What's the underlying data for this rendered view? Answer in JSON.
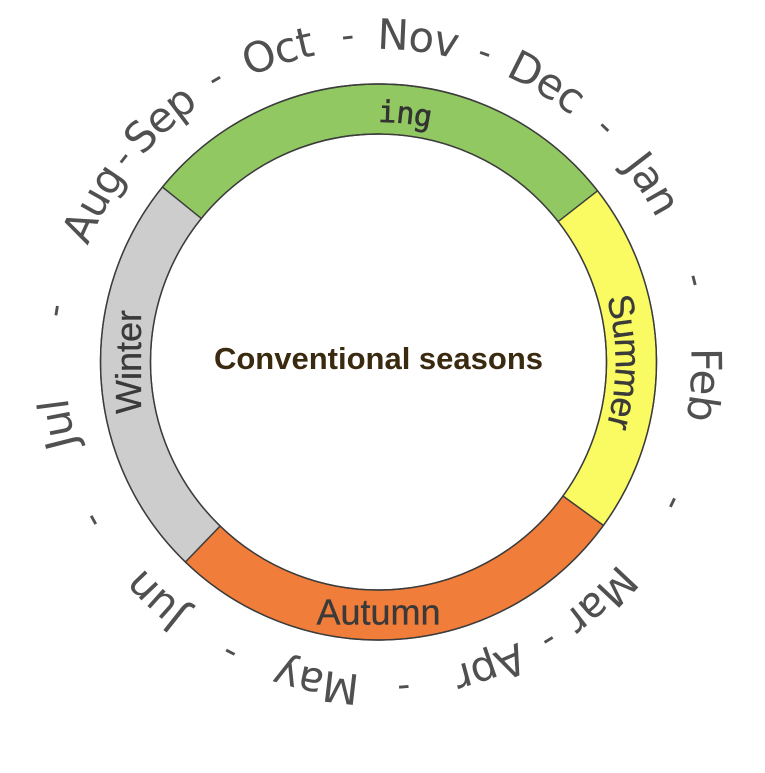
{
  "title": "Conventional seasons",
  "colors": {
    "spring": "#92c862",
    "summer": "#fafa62",
    "autumn": "#f07e3a",
    "winter": "#cdcdcd"
  },
  "seasons": [
    {
      "name": "Spring",
      "color_key": "spring",
      "months": [
        "Sep",
        "Oct",
        "Nov"
      ]
    },
    {
      "name": "Summer",
      "color_key": "summer",
      "months": [
        "Dec",
        "Jan",
        "Feb"
      ]
    },
    {
      "name": "Autumn",
      "color_key": "autumn",
      "months": [
        "Mar",
        "Apr",
        "May"
      ]
    },
    {
      "name": "Winter",
      "color_key": "winter",
      "months": [
        "Jun",
        "Jul",
        "Aug"
      ]
    }
  ],
  "months_clockwise": [
    "Sep",
    "Oct",
    "Nov",
    "Dec",
    "Jan",
    "Feb",
    "Mar",
    "Apr",
    "May",
    "Jun",
    "Jul",
    "Aug"
  ],
  "separator": "-"
}
